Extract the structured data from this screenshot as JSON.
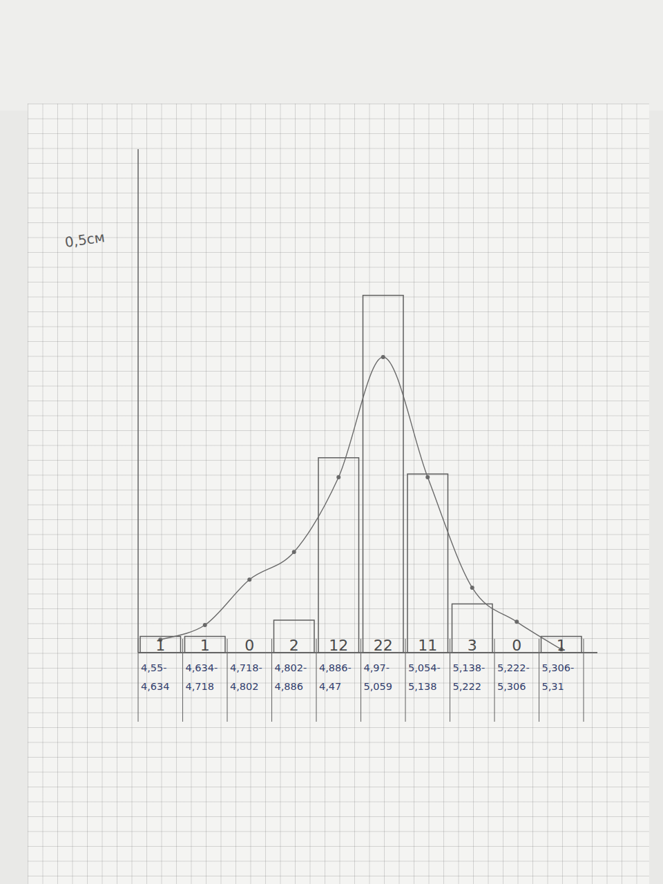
{
  "chart_data": {
    "type": "bar",
    "y_label": "0,5см",
    "categories": [
      "4,55-\n4,634",
      "4,634-\n4,718",
      "4,718-\n4,802",
      "4,802-\n4,886",
      "4,886-\n4,47",
      "4,97-\n5,059",
      "5,054-\n5,138",
      "5,138-\n5,222",
      "5,222-\n5,306",
      "5,306-\n5,31"
    ],
    "series": [
      {
        "type": "bar",
        "color": "#5e5e5e",
        "data_labels": true,
        "values": [
          1,
          1,
          0,
          2,
          12,
          22,
          11,
          3,
          0,
          1
        ]
      },
      {
        "type": "line",
        "color": "#6a6a6a",
        "marker": "dot",
        "values": [
          0.8,
          1.7,
          4.5,
          6.2,
          10.8,
          18.2,
          10.8,
          4.0,
          1.9,
          0.2
        ]
      }
    ],
    "ylim": [
      0,
      31
    ],
    "yticks": [],
    "grid": false,
    "tick_labels": "x"
  }
}
